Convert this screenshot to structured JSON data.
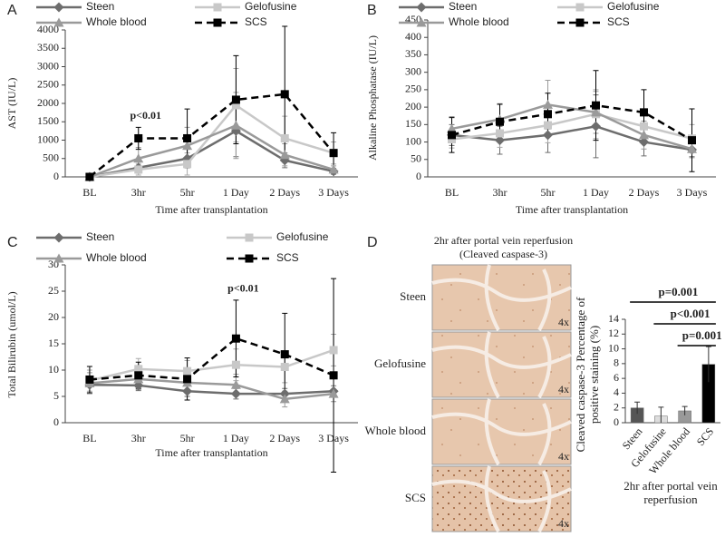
{
  "chart_data": [
    {
      "type": "line",
      "panel": "A",
      "ylabel": "AST (IU/L)",
      "xlabel": "Time after transplantation",
      "categories": [
        "BL",
        "3hr",
        "5hr",
        "1 Day",
        "2 Days",
        "3 Days"
      ],
      "ylim": [
        0,
        4000
      ],
      "yticks": [
        0,
        500,
        1000,
        1500,
        2000,
        2500,
        3000,
        3500,
        4000
      ],
      "annotation": "p<0.01",
      "series": [
        {
          "name": "Steen",
          "color": "#6d6d6d",
          "marker": "diamond",
          "dashed": false,
          "values": [
            0,
            250,
            500,
            1250,
            450,
            150
          ],
          "errors": [
            20,
            150,
            250,
            700,
            200,
            80
          ]
        },
        {
          "name": "Gelofusine",
          "color": "#c8c8c8",
          "marker": "square",
          "dashed": false,
          "values": [
            0,
            200,
            350,
            1950,
            1050,
            650
          ],
          "errors": [
            20,
            150,
            300,
            1000,
            600,
            300
          ]
        },
        {
          "name": "Whole blood",
          "color": "#9a9a9a",
          "marker": "triangle",
          "dashed": false,
          "values": [
            0,
            500,
            850,
            1400,
            600,
            200
          ],
          "errors": [
            20,
            300,
            500,
            900,
            300,
            100
          ]
        },
        {
          "name": "SCS",
          "color": "#000000",
          "marker": "square",
          "dashed": true,
          "values": [
            0,
            1050,
            1050,
            2100,
            2250,
            650
          ],
          "errors": [
            20,
            300,
            800,
            1200,
            1850,
            550
          ]
        }
      ]
    },
    {
      "type": "line",
      "panel": "B",
      "ylabel": "Alkaline Phosphatase (IU/L)",
      "xlabel": "Time after transplantation",
      "categories": [
        "BL",
        "3hr",
        "5hr",
        "1 Day",
        "2 Days",
        "3 Days"
      ],
      "ylim": [
        0,
        450
      ],
      "yticks": [
        0,
        50,
        100,
        150,
        200,
        250,
        300,
        350,
        400,
        450
      ],
      "series": [
        {
          "name": "Steen",
          "color": "#6d6d6d",
          "marker": "diamond",
          "dashed": false,
          "values": [
            120,
            105,
            120,
            145,
            100,
            78
          ],
          "errors": [
            30,
            40,
            50,
            90,
            40,
            20
          ]
        },
        {
          "name": "Gelofusine",
          "color": "#c8c8c8",
          "marker": "square",
          "dashed": false,
          "values": [
            108,
            125,
            148,
            180,
            145,
            110
          ],
          "errors": [
            25,
            40,
            50,
            70,
            50,
            40
          ]
        },
        {
          "name": "Whole blood",
          "color": "#9a9a9a",
          "marker": "triangle",
          "dashed": false,
          "values": [
            138,
            165,
            207,
            185,
            120,
            80
          ],
          "errors": [
            35,
            45,
            70,
            60,
            40,
            25
          ]
        },
        {
          "name": "SCS",
          "color": "#000000",
          "marker": "square",
          "dashed": true,
          "values": [
            120,
            158,
            180,
            205,
            185,
            105
          ],
          "errors": [
            50,
            50,
            60,
            100,
            65,
            90
          ]
        }
      ]
    },
    {
      "type": "line",
      "panel": "C",
      "ylabel": "Total Bilirubin (umol/L)",
      "xlabel": "Time after transplantation",
      "categories": [
        "BL",
        "3hr",
        "5hr",
        "1 Day",
        "2 Days",
        "3 Days"
      ],
      "ylim": [
        0,
        30
      ],
      "yticks": [
        0,
        5,
        10,
        15,
        20,
        25,
        30
      ],
      "annotation": "p<0.01",
      "series": [
        {
          "name": "Steen",
          "color": "#6d6d6d",
          "marker": "diamond",
          "dashed": false,
          "values": [
            7.2,
            7.1,
            6,
            5.5,
            5.5,
            6
          ],
          "errors": [
            1.5,
            1,
            1,
            1,
            1,
            1
          ]
        },
        {
          "name": "Gelofusine",
          "color": "#c8c8c8",
          "marker": "square",
          "dashed": false,
          "values": [
            8,
            10.2,
            9.8,
            11,
            10.6,
            13.8
          ],
          "errors": [
            2,
            2,
            2,
            3,
            3,
            3
          ]
        },
        {
          "name": "Whole blood",
          "color": "#9a9a9a",
          "marker": "triangle",
          "dashed": false,
          "values": [
            7.5,
            8.3,
            7.6,
            7.2,
            4.5,
            5.5
          ],
          "errors": [
            2,
            2,
            2,
            2,
            1.5,
            1.5
          ]
        },
        {
          "name": "SCS",
          "color": "#000000",
          "marker": "square",
          "dashed": true,
          "values": [
            8.2,
            9,
            8.3,
            16,
            13,
            9
          ],
          "errors": [
            2.5,
            2.5,
            4,
            7.3,
            7.8,
            18.4
          ]
        }
      ]
    },
    {
      "type": "bar",
      "panel": "D",
      "ylabel": "Cleaved caspase-3 Percentage of positive staining (%)",
      "xlabel": "2hr after portal vein reperfusion",
      "categories": [
        "Steen",
        "Gelofusine",
        "Whole blood",
        "SCS"
      ],
      "values": [
        2,
        0.9,
        1.6,
        7.9
      ],
      "errors": [
        0.8,
        1.2,
        0.6,
        2.4
      ],
      "colors": [
        "#555555",
        "#dddddd",
        "#999999",
        "#000000"
      ],
      "ylim": [
        0,
        14
      ],
      "yticks": [
        0,
        2,
        4,
        6,
        8,
        10,
        12,
        14
      ],
      "annotations": [
        "p=0.001",
        "p<0.001",
        "p=0.001"
      ]
    }
  ],
  "images": {
    "title": "2hr after portal vein reperfusion (Cleaved caspase-3)",
    "rows": [
      {
        "label": "Steen",
        "scale": "4x"
      },
      {
        "label": "Gelofusine",
        "scale": "4x"
      },
      {
        "label": "Whole blood",
        "scale": "4x"
      },
      {
        "label": "SCS",
        "scale": "4x"
      }
    ]
  }
}
